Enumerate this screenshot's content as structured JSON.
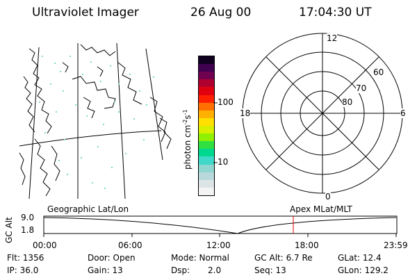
{
  "header": {
    "instrument": "Ultraviolet Imager",
    "date": "26 Aug 00",
    "time": "17:04:30 UT"
  },
  "colorbar": {
    "label": "photon cm",
    "label_exp1": "-2",
    "label_mid": "s",
    "label_exp2": "-1",
    "tick_labels": [
      "100",
      "10"
    ],
    "colors": [
      "#f4f4f4",
      "#dce4e6",
      "#b8d8dc",
      "#8fd6d0",
      "#40d8c8",
      "#00d890",
      "#30e040",
      "#90f000",
      "#d8f000",
      "#ffe000",
      "#ffb000",
      "#ff7000",
      "#ff2000",
      "#e00010",
      "#b00030",
      "#700050",
      "#400050",
      "#100020"
    ]
  },
  "polar": {
    "mlt_labels": {
      "top": "12",
      "bottom": "0",
      "left": "18",
      "right": "6"
    },
    "lat_labels": [
      "60",
      "70",
      "80"
    ]
  },
  "timeline": {
    "axis_label": "GC Alt",
    "y_ticks": [
      "9.0",
      "1.8"
    ],
    "left_title": "Geographic Lat/Lon",
    "right_title": "Apex MLat/MLT",
    "x_ticks": [
      "00:00",
      "06:00",
      "12:00",
      "18:00",
      "23:59"
    ],
    "marker_color": "#e00000"
  },
  "info": {
    "flt": "Flt: 1356",
    "ip": "IP: 36.0",
    "door": "Door: Open",
    "gain": "Gain: 13",
    "mode": "Mode: Normal",
    "dsp_label": "Dsp:",
    "dsp_value": "2.0",
    "gc_alt": "GC Alt: 6.7 Re",
    "seq": "Seq: 13",
    "glat": "GLat: 12.4",
    "glon": "GLon: 129.2"
  }
}
